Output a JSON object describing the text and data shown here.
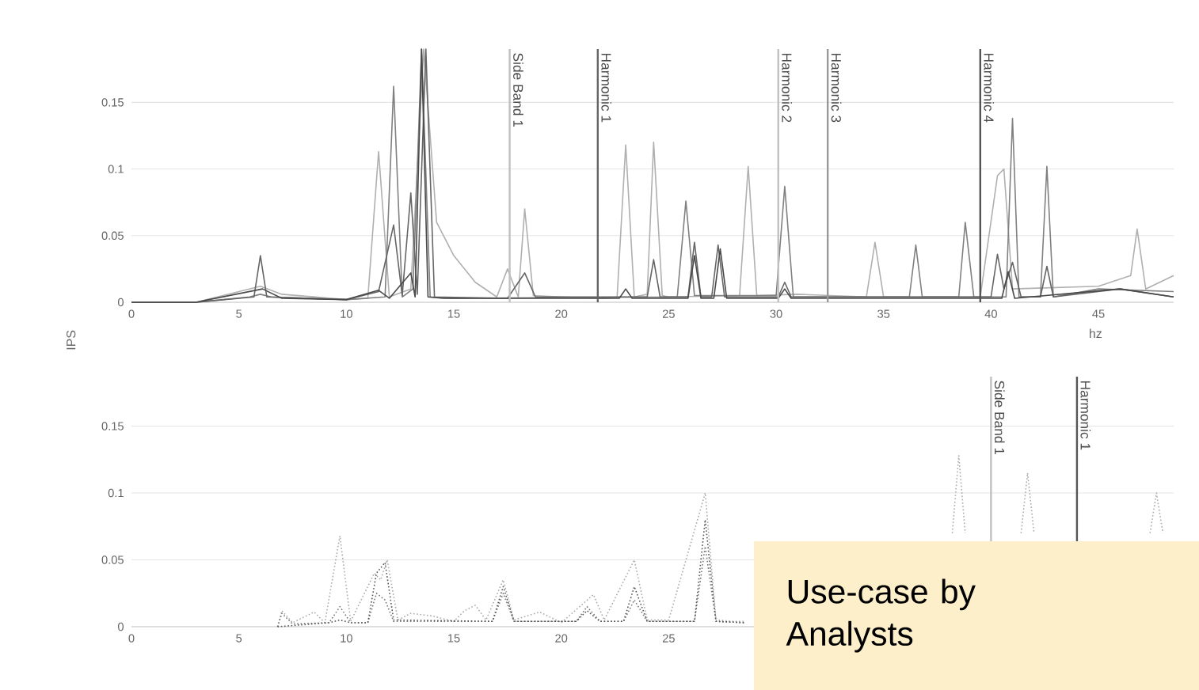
{
  "chart_data": [
    {
      "type": "line",
      "xlabel": "hz",
      "xlim": [
        0,
        48.5
      ],
      "ylim": [
        0,
        0.19
      ],
      "xticks": [
        0,
        5,
        10,
        15,
        20,
        25,
        30,
        35,
        40,
        45
      ],
      "yticks": [
        0,
        0.05,
        0.1,
        0.15
      ],
      "grid": "y",
      "marker": "none",
      "line_style": "solid",
      "series": [
        {
          "color": "#b0b0b0",
          "x": [
            0,
            3,
            5,
            6,
            7,
            10,
            11,
            11.5,
            12,
            13,
            13.6,
            14.2,
            15,
            16,
            17,
            17.5,
            18,
            18.3,
            18.7,
            20,
            22,
            22.6,
            23,
            23.4,
            24,
            24.3,
            24.7,
            25,
            28.3,
            28.7,
            29.1,
            31,
            34.2,
            34.6,
            35,
            39.5,
            40.3,
            40.6,
            41,
            45,
            46.5,
            46.8,
            47.2,
            48.5
          ],
          "values": [
            0,
            0,
            0.008,
            0.012,
            0.006,
            0.002,
            0.003,
            0.113,
            0.004,
            0.01,
            0.19,
            0.06,
            0.035,
            0.015,
            0.004,
            0.025,
            0.004,
            0.07,
            0.005,
            0.004,
            0.003,
            0.004,
            0.118,
            0.004,
            0.006,
            0.12,
            0.005,
            0.004,
            0.005,
            0.102,
            0.005,
            0.006,
            0.004,
            0.045,
            0.004,
            0.004,
            0.095,
            0.1,
            0.01,
            0.012,
            0.02,
            0.055,
            0.01,
            0.02
          ]
        },
        {
          "color": "#808080",
          "x": [
            0,
            3,
            5.5,
            6,
            6.5,
            10,
            11.8,
            12.2,
            12.6,
            13.1,
            13.5,
            13.9,
            15,
            25.4,
            25.8,
            26.2,
            30,
            30.4,
            30.8,
            36.2,
            36.5,
            36.8,
            38.5,
            38.8,
            39.2,
            40.7,
            41,
            41.3,
            42.3,
            42.6,
            42.9,
            45,
            48.5
          ],
          "values": [
            0,
            0,
            0.004,
            0.006,
            0.004,
            0.002,
            0.004,
            0.162,
            0.004,
            0.01,
            0.19,
            0.004,
            0.003,
            0.004,
            0.076,
            0.005,
            0.005,
            0.087,
            0.004,
            0.004,
            0.043,
            0.004,
            0.004,
            0.06,
            0.004,
            0.004,
            0.138,
            0.004,
            0.004,
            0.102,
            0.004,
            0.01,
            0.008
          ]
        },
        {
          "color": "#666666",
          "x": [
            0,
            3,
            5.7,
            6,
            6.3,
            10,
            11.5,
            12.2,
            12.6,
            13,
            13.3,
            13.7,
            14.1,
            17.5,
            18.3,
            18.8,
            24,
            24.3,
            24.6,
            25.9,
            26.2,
            26.5,
            27,
            27.3,
            27.6,
            30.1,
            30.4,
            30.7,
            40,
            40.3,
            40.6,
            41,
            41.4,
            42.3,
            42.6,
            42.9,
            46,
            48.5
          ],
          "values": [
            0,
            0,
            0.004,
            0.035,
            0.004,
            0.002,
            0.008,
            0.058,
            0.005,
            0.082,
            0.006,
            0.19,
            0.004,
            0.003,
            0.022,
            0.004,
            0.004,
            0.032,
            0.004,
            0.004,
            0.045,
            0.004,
            0.004,
            0.043,
            0.004,
            0.004,
            0.015,
            0.004,
            0.004,
            0.036,
            0.01,
            0.03,
            0.004,
            0.004,
            0.027,
            0.004,
            0.01,
            0.004
          ]
        },
        {
          "color": "#4a4a4a",
          "x": [
            0,
            3,
            6.1,
            7,
            10,
            11.5,
            12,
            13,
            13.2,
            13.5,
            13.8,
            14.5,
            22.7,
            23,
            23.3,
            25.9,
            26.2,
            26.5,
            27.1,
            27.4,
            27.7,
            30.1,
            30.4,
            30.7,
            40.5,
            40.8,
            41.1,
            46,
            48.5
          ],
          "values": [
            0,
            0,
            0.01,
            0.003,
            0.002,
            0.009,
            0.003,
            0.022,
            0.004,
            0.19,
            0.004,
            0.003,
            0.003,
            0.01,
            0.003,
            0.003,
            0.035,
            0.003,
            0.003,
            0.04,
            0.003,
            0.003,
            0.01,
            0.003,
            0.003,
            0.023,
            0.003,
            0.01,
            0.004
          ]
        }
      ],
      "ref_lines": [
        {
          "axis": "x",
          "value": 17.6,
          "label": "Side Band 1",
          "color": "#c0c0c0"
        },
        {
          "axis": "x",
          "value": 21.7,
          "label": "Harmonic 1",
          "color": "#666666"
        },
        {
          "axis": "x",
          "value": 30.1,
          "label": "Harmonic 2",
          "color": "#c0c0c0"
        },
        {
          "axis": "x",
          "value": 32.4,
          "label": "Harmonic 3",
          "color": "#999999"
        },
        {
          "axis": "x",
          "value": 39.5,
          "label": "Harmonic 4",
          "color": "#555555"
        }
      ]
    },
    {
      "type": "line",
      "ylabel": "IPS",
      "xlim": [
        0,
        48.5
      ],
      "ylim": [
        0,
        0.187
      ],
      "xticks": [
        0,
        5,
        10,
        15,
        20,
        25
      ],
      "yticks": [
        0,
        0.05,
        0.1,
        0.15
      ],
      "grid": "y",
      "marker": "none",
      "line_style": "dotted",
      "series": [
        {
          "color": "#aaaaaa",
          "x": [
            6.8,
            7,
            7.5,
            8.5,
            9,
            9.7,
            10.2,
            11.3,
            11.6,
            11.9,
            12.4,
            13,
            14,
            15,
            15.5,
            16,
            16.5,
            17.3,
            17.8,
            19,
            20,
            21,
            21.5,
            22,
            23.4,
            24,
            25,
            26.7,
            27.2,
            28,
            28.5,
            29,
            38.2,
            38.5,
            38.8,
            39,
            41.4,
            41.7,
            42,
            42.2,
            47.4,
            47.7,
            48
          ],
          "values": [
            0,
            0.012,
            0.003,
            0.011,
            0.003,
            0.068,
            0.004,
            0.04,
            0.035,
            0.05,
            0.005,
            0.01,
            0.008,
            0.004,
            0.012,
            0.016,
            0.005,
            0.035,
            0.005,
            0.011,
            0.003,
            0.017,
            0.024,
            0.005,
            0.05,
            0.005,
            0.005,
            0.1,
            0.005,
            0.004,
            0.004,
            null,
            0.07,
            0.128,
            0.07,
            null,
            0.07,
            0.115,
            0.07,
            null,
            0.07,
            0.1,
            0.07
          ]
        },
        {
          "color": "#777777",
          "x": [
            6.8,
            7,
            7.5,
            9.2,
            9.7,
            10.2,
            11,
            11.4,
            11.8,
            12.2,
            16.8,
            17.3,
            17.8,
            20.7,
            21.2,
            21.8,
            22.9,
            23.4,
            24,
            26.2,
            26.7,
            27.2,
            28.5
          ],
          "values": [
            0,
            0.01,
            0.002,
            0.003,
            0.015,
            0.003,
            0.003,
            0.025,
            0.02,
            0.004,
            0.004,
            0.025,
            0.004,
            0.004,
            0.015,
            0.004,
            0.004,
            0.02,
            0.004,
            0.004,
            0.06,
            0.004,
            0.003
          ]
        },
        {
          "color": "#555555",
          "x": [
            6.8,
            9.2,
            9.7,
            10.2,
            11,
            11.4,
            11.8,
            12.2,
            16.8,
            17.3,
            17.8,
            20.7,
            21.2,
            21.8,
            22.9,
            23.4,
            24,
            26.2,
            26.7,
            27.2,
            28.5
          ],
          "values": [
            0,
            0.003,
            0.005,
            0.003,
            0.003,
            0.04,
            0.048,
            0.005,
            0.004,
            0.03,
            0.004,
            0.004,
            0.012,
            0.004,
            0.004,
            0.03,
            0.004,
            0.004,
            0.08,
            0.004,
            0.003
          ]
        }
      ],
      "ref_lines": [
        {
          "axis": "x",
          "value": 40.0,
          "label": "Side Band 1",
          "color": "#c0c0c0"
        },
        {
          "axis": "x",
          "value": 44.0,
          "label": "Harmonic 1",
          "color": "#555555"
        }
      ],
      "annotations": [
        "Use-case by Analysts"
      ]
    }
  ]
}
